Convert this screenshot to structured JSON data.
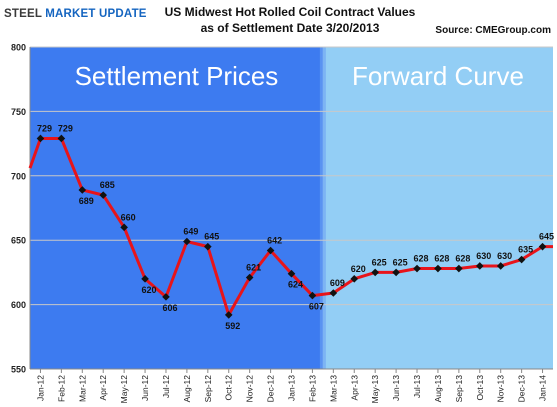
{
  "header": {
    "logo_text_a": "STEEL ",
    "logo_text_b": "MARKET UPDATE",
    "title_line1": "US Midwest Hot Rolled Coil Contract  Values",
    "title_line2": "as of Settlement Date 3/20/2013",
    "source": "Source: CMEGroup.com"
  },
  "colors": {
    "settlement_bg": "#3d7bf0",
    "forward_bg": "#93cef5",
    "line": "#e8141a",
    "marker": "#111111",
    "grid": "#c8c8c8"
  },
  "chart_data": {
    "type": "line",
    "regions": [
      {
        "label": "Settlement Prices",
        "from": "Jan-12",
        "to": "Feb-13"
      },
      {
        "label": "Forward Curve",
        "from": "Mar-13",
        "to": "Jan-14"
      }
    ],
    "y_ticks": [
      550,
      600,
      650,
      700,
      750,
      800
    ],
    "ylim": [
      550,
      800
    ],
    "grid": true,
    "categories": [
      "Jan-12",
      "Feb-12",
      "Mar-12",
      "Apr-12",
      "May-12",
      "Jun-12",
      "Jul-12",
      "Aug-12",
      "Sep-12",
      "Oct-12",
      "Nov-12",
      "Dec-12",
      "Jan-13",
      "Feb-13",
      "Mar-13",
      "Apr-13",
      "May-13",
      "Jun-13",
      "Jul-13",
      "Aug-13",
      "Sep-13",
      "Oct-13",
      "Nov-13",
      "Dec-13",
      "Jan-14"
    ],
    "series": [
      {
        "values": [
          729,
          729,
          689,
          685,
          660,
          620,
          606,
          649,
          645,
          592,
          621,
          642,
          624,
          607,
          609,
          620,
          625,
          625,
          628,
          628,
          628,
          630,
          630,
          635,
          645
        ],
        "labels": [
          "729",
          "729",
          "689",
          "685",
          "660",
          "620",
          "606",
          "649",
          "645",
          "592",
          "621",
          "642",
          "624",
          "607",
          "609",
          "620",
          "625",
          "625",
          "628",
          "628",
          "628",
          "630",
          "630",
          "635",
          "645"
        ],
        "label_pos": [
          "above",
          "above",
          "below",
          "above",
          "above",
          "below",
          "below",
          "above",
          "above",
          "below",
          "above",
          "above",
          "below",
          "below",
          "above",
          "above",
          "above",
          "above",
          "above",
          "above",
          "above",
          "above",
          "above",
          "above",
          "above"
        ]
      }
    ]
  }
}
